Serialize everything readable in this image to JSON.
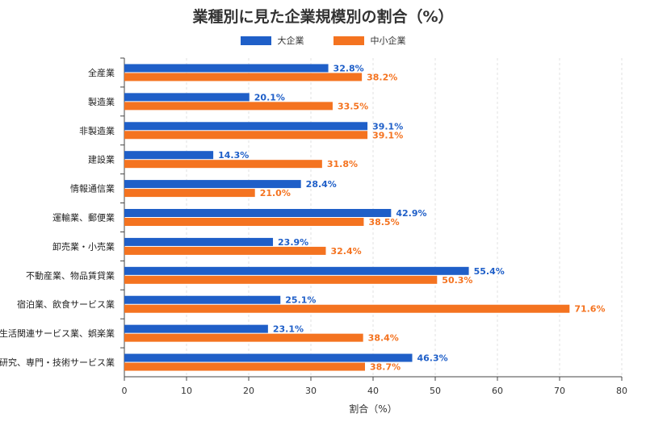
{
  "chart_data": {
    "type": "bar",
    "orientation": "horizontal",
    "title": "業種別に見た企業規模別の割合（%）",
    "xlabel": "割合（%）",
    "ylabel": "",
    "xlim": [
      0,
      80
    ],
    "xticks": [
      0,
      10,
      20,
      30,
      40,
      50,
      60,
      70,
      80
    ],
    "grid": true,
    "legend_position": "top",
    "categories": [
      "全産業",
      "製造業",
      "非製造業",
      "建設業",
      "情報通信業",
      "運輸業、郵便業",
      "卸売業・小売業",
      "不動産業、物品賃貸業",
      "宿泊業、飲食サービス業",
      "生活関連サービス業、娯楽業",
      "学術研究、専門・技術サービス業"
    ],
    "series": [
      {
        "name": "大企業",
        "color": "#1f5fc8",
        "values": [
          32.8,
          20.1,
          39.1,
          14.3,
          28.4,
          42.9,
          23.9,
          55.4,
          25.1,
          23.1,
          46.3
        ],
        "labels": [
          "32.8%",
          "20.1%",
          "39.1%",
          "14.3%",
          "28.4%",
          "42.9%",
          "23.9%",
          "55.4%",
          "25.1%",
          "23.1%",
          "46.3%"
        ]
      },
      {
        "name": "中小企業",
        "color": "#f47320",
        "values": [
          38.2,
          33.5,
          39.1,
          31.8,
          21.0,
          38.5,
          32.4,
          50.3,
          71.6,
          38.4,
          38.7
        ],
        "labels": [
          "38.2%",
          "33.5%",
          "39.1%",
          "31.8%",
          "21.0%",
          "38.5%",
          "32.4%",
          "50.3%",
          "71.6%",
          "38.4%",
          "38.7%"
        ]
      }
    ]
  }
}
